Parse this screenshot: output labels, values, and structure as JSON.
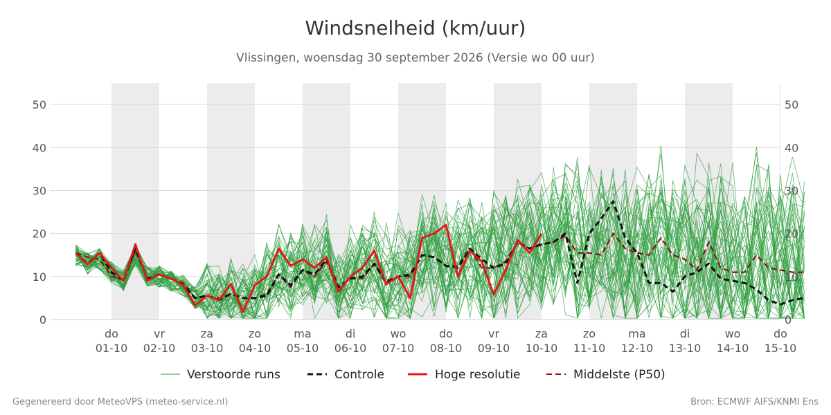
{
  "chart_data": {
    "type": "line",
    "title": "Windsnelheid (km/uur)",
    "subtitle": "Vlissingen, woensdag 30 september 2026 (Versie wo 00 uur)",
    "xlabel": "",
    "ylabel": "",
    "ylim": [
      0,
      55
    ],
    "yticks": [
      0,
      10,
      20,
      30,
      40,
      50
    ],
    "grid": true,
    "legend_position": "bottom",
    "x_start_day": 0,
    "x_end_day": 15.5,
    "x_tick_days": [
      1,
      2,
      3,
      4,
      5,
      6,
      7,
      8,
      9,
      10,
      11,
      12,
      13,
      14,
      15
    ],
    "x_ticks": [
      {
        "day": "do",
        "date": "01-10"
      },
      {
        "day": "vr",
        "date": "02-10"
      },
      {
        "day": "za",
        "date": "03-10"
      },
      {
        "day": "zo",
        "date": "04-10"
      },
      {
        "day": "ma",
        "date": "05-10"
      },
      {
        "day": "di",
        "date": "06-10"
      },
      {
        "day": "wo",
        "date": "07-10"
      },
      {
        "day": "do",
        "date": "08-10"
      },
      {
        "day": "vr",
        "date": "09-10"
      },
      {
        "day": "za",
        "date": "10-10"
      },
      {
        "day": "zo",
        "date": "11-10"
      },
      {
        "day": "ma",
        "date": "12-10"
      },
      {
        "day": "di",
        "date": "13-10"
      },
      {
        "day": "wo",
        "date": "14-10"
      },
      {
        "day": "do",
        "date": "15-10"
      }
    ],
    "shaded_days": [
      [
        1,
        2
      ],
      [
        3,
        4
      ],
      [
        5,
        6
      ],
      [
        7,
        8
      ],
      [
        9,
        10
      ],
      [
        11,
        12
      ],
      [
        13,
        14
      ]
    ],
    "series": [
      {
        "name": "Hoge resolutie",
        "color": "#e01a1a",
        "x": [
          0.25,
          0.5,
          0.75,
          1.0,
          1.25,
          1.5,
          1.75,
          2.0,
          2.25,
          2.5,
          2.75,
          3.0,
          3.25,
          3.5,
          3.75,
          4.0,
          4.25,
          4.5,
          4.75,
          5.0,
          5.25,
          5.5,
          5.75,
          6.0,
          6.25,
          6.5,
          6.75,
          7.0,
          7.25,
          7.5,
          7.75,
          8.0,
          8.25,
          8.5,
          8.75,
          9.0,
          9.25,
          9.5,
          9.75,
          10.0
        ],
        "values": [
          15.5,
          12.8,
          15.5,
          12,
          9,
          17.5,
          9,
          10.5,
          9.5,
          8,
          3.3,
          5.5,
          4.5,
          8.3,
          1.8,
          8,
          10,
          16.5,
          12.5,
          14,
          12,
          14.5,
          6.5,
          10,
          12,
          16,
          8.2,
          10,
          5,
          19,
          20,
          22,
          10,
          16,
          13.5,
          5.8,
          11.5,
          18.5,
          15.5,
          20
        ]
      },
      {
        "name": "Controle",
        "color": "#111111",
        "x": [
          0.25,
          0.5,
          0.75,
          1.0,
          1.25,
          1.5,
          1.75,
          2.0,
          2.25,
          2.5,
          2.75,
          3.0,
          3.25,
          3.5,
          3.75,
          4.0,
          4.25,
          4.5,
          4.75,
          5.0,
          5.25,
          5.5,
          5.75,
          6.0,
          6.25,
          6.5,
          6.75,
          7.0,
          7.25,
          7.5,
          7.75,
          8.0,
          8.25,
          8.5,
          8.75,
          9.0,
          9.25,
          9.5,
          9.75,
          10.0,
          10.25,
          10.5,
          10.75,
          11.0,
          11.25,
          11.5,
          11.75,
          12.0,
          12.25,
          12.5,
          12.75,
          13.0,
          13.25,
          13.5,
          13.75,
          14.0,
          14.25,
          14.5,
          14.75,
          15.0,
          15.25,
          15.5
        ],
        "values": [
          15.5,
          13,
          15.5,
          11,
          9,
          16.5,
          9.5,
          10.5,
          9.5,
          8,
          5,
          5.5,
          4.5,
          6,
          5,
          5,
          5.5,
          10.5,
          8,
          11.5,
          10.5,
          14,
          7.5,
          9.5,
          10,
          13,
          8.5,
          10,
          10.5,
          15,
          14.5,
          12.5,
          12,
          16.5,
          14,
          12,
          13,
          18,
          16.5,
          17.5,
          18,
          20,
          8.5,
          20,
          23.5,
          27.5,
          19,
          15.5,
          8.5,
          8.5,
          6.5,
          10,
          11,
          13,
          9.5,
          9,
          8.5,
          7,
          4.5,
          3.5,
          4.5,
          5
        ]
      },
      {
        "name": "Middelste (P50)",
        "color": "#8b0e0e",
        "x": [
          0.25,
          0.5,
          0.75,
          1.0,
          1.25,
          1.5,
          1.75,
          2.0,
          2.25,
          2.5,
          2.75,
          3.0,
          3.25,
          3.5,
          3.75,
          4.0,
          4.25,
          4.5,
          4.75,
          5.0,
          5.25,
          5.5,
          5.75,
          6.0,
          6.25,
          6.5,
          6.75,
          7.0,
          7.25,
          7.5,
          7.75,
          8.0,
          8.25,
          8.5,
          8.75,
          9.0,
          9.25,
          9.5,
          9.75,
          10.0,
          10.25,
          10.5,
          10.75,
          11.0,
          11.25,
          11.5,
          11.75,
          12.0,
          12.25,
          12.5,
          12.75,
          13.0,
          13.25,
          13.5,
          13.75,
          14.0,
          14.25,
          14.5,
          14.75,
          15.0,
          15.25,
          15.5
        ],
        "values": [
          15.5,
          14.5,
          14,
          10,
          9.5,
          16,
          9.5,
          10.5,
          9.5,
          8.5,
          5,
          5.5,
          5,
          6,
          5,
          5,
          6,
          10.5,
          7.5,
          11.5,
          10,
          13.5,
          7.5,
          9.5,
          9.5,
          13,
          9,
          10,
          10,
          15,
          14.5,
          12.5,
          12.5,
          16.5,
          12,
          12,
          13.5,
          18,
          16.5,
          17.5,
          18,
          19.5,
          15.5,
          15.5,
          15,
          20,
          16.5,
          15.5,
          15,
          19,
          15,
          14,
          11.5,
          18,
          12,
          11,
          11,
          15,
          12,
          11.5,
          11,
          11
        ]
      }
    ],
    "ensemble": {
      "name": "Verstoorde runs",
      "color": "#2e9e3e",
      "members": 50,
      "x_step_days": 0.25,
      "spread_profile_note": "",
      "seed_values": [
        [
          15,
          13,
          14,
          11,
          9,
          15,
          10,
          10,
          9,
          8,
          5,
          6,
          5,
          6,
          5,
          6,
          8,
          12,
          10,
          12,
          11,
          13,
          8,
          10,
          11,
          13,
          9,
          11,
          10,
          14,
          15,
          14,
          13,
          15,
          14,
          13,
          15,
          17,
          18,
          17,
          18,
          19,
          16,
          17,
          17,
          19,
          17,
          16,
          16,
          18,
          16,
          15,
          14,
          17,
          13,
          12,
          12,
          14,
          12,
          11,
          11,
          12
        ]
      ]
    },
    "legend": [
      {
        "label": "Verstoorde runs",
        "style": "thin-green"
      },
      {
        "label": "Controle",
        "style": "dashed-black"
      },
      {
        "label": "Hoge resolutie",
        "style": "solid-red"
      },
      {
        "label": "Middelste (P50)",
        "style": "dashed-darkred"
      }
    ]
  },
  "footer": {
    "left": "Gegenereerd door MeteoVPS (meteo-service.nl)",
    "right": "Bron: ECMWF AIFS/KNMI Ens"
  }
}
